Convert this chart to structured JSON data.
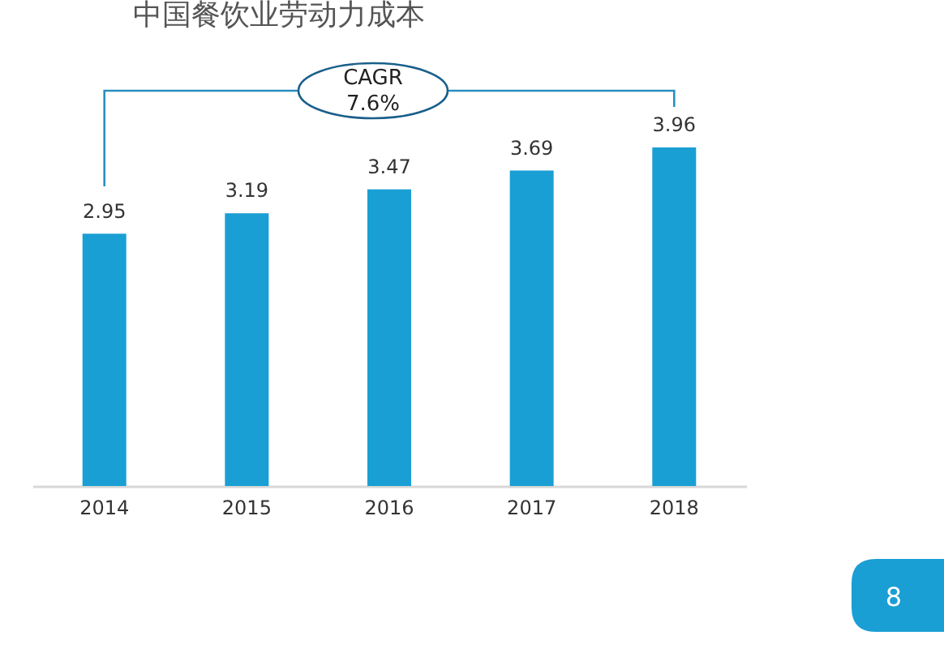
{
  "chart_data": {
    "type": "bar",
    "title": "中国餐饮业劳动力成本",
    "categories": [
      "2014",
      "2015",
      "2016",
      "2017",
      "2018"
    ],
    "values": [
      2.95,
      3.19,
      3.47,
      3.69,
      3.96
    ],
    "color": "#1a9fd4",
    "data_labels": true,
    "annotations": [
      "CAGR",
      "7.6%",
      "8"
    ]
  }
}
